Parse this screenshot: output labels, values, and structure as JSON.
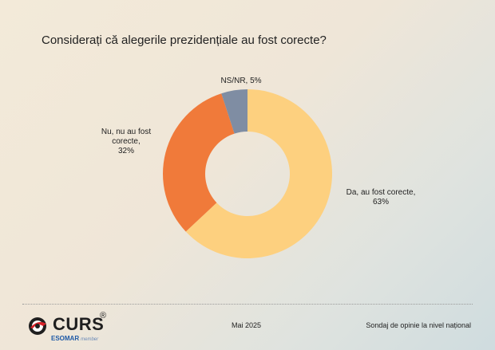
{
  "title": "Considerați că alegerile prezidențiale au fost corecte?",
  "chart_data": {
    "type": "pie",
    "donut": true,
    "slices": [
      {
        "label_lines": [
          "Da, au fost corecte,",
          "63%"
        ],
        "value": 63,
        "color": "#fdd07f"
      },
      {
        "label_lines": [
          "Nu, nu au fost",
          "corecte,",
          "32%"
        ],
        "value": 32,
        "color": "#f07a3a"
      },
      {
        "label_lines": [
          "NS/NR, 5%"
        ],
        "value": 5,
        "color": "#7f8da3"
      }
    ]
  },
  "footer": {
    "date": "Mai 2025",
    "source": "Sondaj de opinie la nivel național",
    "logo": {
      "brand": "CURS",
      "registered": "®",
      "esomar": "ESOMAR",
      "member": "member"
    }
  }
}
